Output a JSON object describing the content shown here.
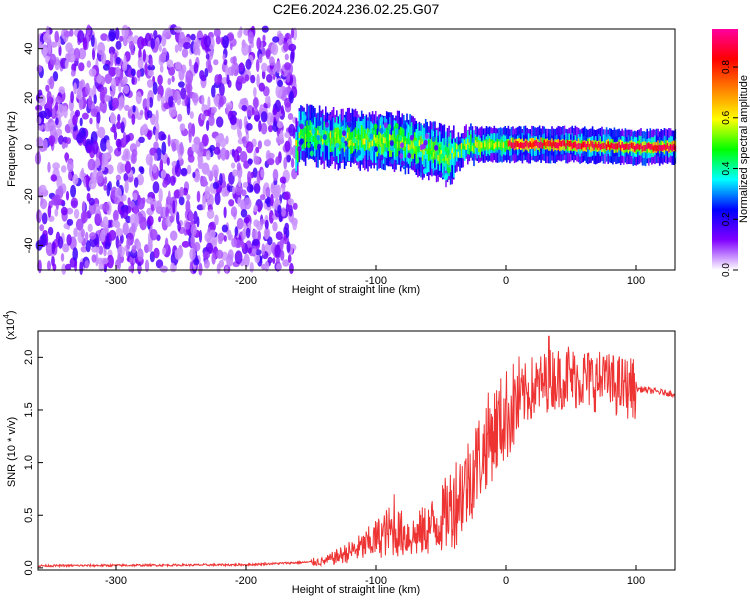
{
  "figure": {
    "title": "C2E6.2024.236.02.25.G07"
  },
  "chart_data": [
    {
      "type": "heatmap",
      "xlabel": "Height of straight line (km)",
      "ylabel": "Frequency (Hz)",
      "xlim": [
        -360,
        130
      ],
      "ylim": [
        -50,
        48
      ],
      "xticks": [
        -300,
        -200,
        -100,
        0,
        100
      ],
      "yticks": [
        -40,
        -20,
        0,
        20,
        40
      ],
      "colorbar": {
        "label": "Normalized spectral amplitude",
        "range": [
          0,
          0.95
        ],
        "ticks": [
          0.0,
          0.2,
          0.4,
          0.6,
          0.8
        ],
        "tick_labels": [
          "0.0",
          "0.2",
          "0.4",
          "0.6",
          "0.8"
        ],
        "colormap": [
          "#ffffff",
          "#8000ff",
          "#0000ff",
          "#00ffff",
          "#00ff00",
          "#ffff00",
          "#ff8000",
          "#ff0000",
          "#ff00a0"
        ]
      },
      "regions": [
        {
          "x_range": [
            -360,
            -162
          ],
          "y_range": [
            -50,
            48
          ],
          "description": "noise",
          "amplitude": [
            0.05,
            0.2
          ]
        },
        {
          "x_range": [
            -162,
            130
          ],
          "y_range": [
            -6,
            12
          ],
          "description": "signal",
          "amplitude": [
            0.1,
            0.95
          ]
        }
      ],
      "signal_track": [
        {
          "x": -160,
          "y": 5
        },
        {
          "x": -120,
          "y": 3
        },
        {
          "x": -80,
          "y": 2
        },
        {
          "x": -45,
          "y": -4
        },
        {
          "x": -30,
          "y": 1
        },
        {
          "x": 0,
          "y": 1
        },
        {
          "x": 50,
          "y": 1
        },
        {
          "x": 100,
          "y": 0
        },
        {
          "x": 130,
          "y": 0
        }
      ]
    },
    {
      "type": "line",
      "xlabel": "Height of straight line (km)",
      "ylabel": "SNR (10 * v/v)",
      "y_multiplier": "(x10",
      "y_multiplier_exp": "4",
      "y_multiplier_close": ")",
      "xlim": [
        -360,
        130
      ],
      "ylim": [
        -0.02,
        2.25
      ],
      "xticks": [
        -300,
        -200,
        -100,
        0,
        100
      ],
      "yticks": [
        0.0,
        0.5,
        1.0,
        1.5,
        2.0
      ],
      "ytick_labels": [
        "0.0",
        "0.5",
        "1.0",
        "1.5",
        "2.0"
      ],
      "series": [
        {
          "color": "#ee3333",
          "envelope": [
            {
              "x": -360,
              "y": 0.02
            },
            {
              "x": -200,
              "y": 0.03
            },
            {
              "x": -140,
              "y": 0.06
            },
            {
              "x": -110,
              "y": 0.2
            },
            {
              "x": -90,
              "y": 0.35
            },
            {
              "x": -70,
              "y": 0.3
            },
            {
              "x": -50,
              "y": 0.45
            },
            {
              "x": -30,
              "y": 0.8
            },
            {
              "x": -15,
              "y": 1.2
            },
            {
              "x": 0,
              "y": 1.45
            },
            {
              "x": 15,
              "y": 1.65
            },
            {
              "x": 35,
              "y": 1.8
            },
            {
              "x": 60,
              "y": 1.8
            },
            {
              "x": 90,
              "y": 1.72
            },
            {
              "x": 130,
              "y": 1.65
            }
          ],
          "peaks": [
            {
              "x": -86,
              "y": 0.7
            },
            {
              "x": -18,
              "y": 1.0
            },
            {
              "x": 20,
              "y": 2.0
            },
            {
              "x": 33,
              "y": 2.2
            },
            {
              "x": 48,
              "y": 2.1
            },
            {
              "x": 75,
              "y": 2.0
            },
            {
              "x": 95,
              "y": 1.85
            }
          ]
        }
      ]
    }
  ]
}
